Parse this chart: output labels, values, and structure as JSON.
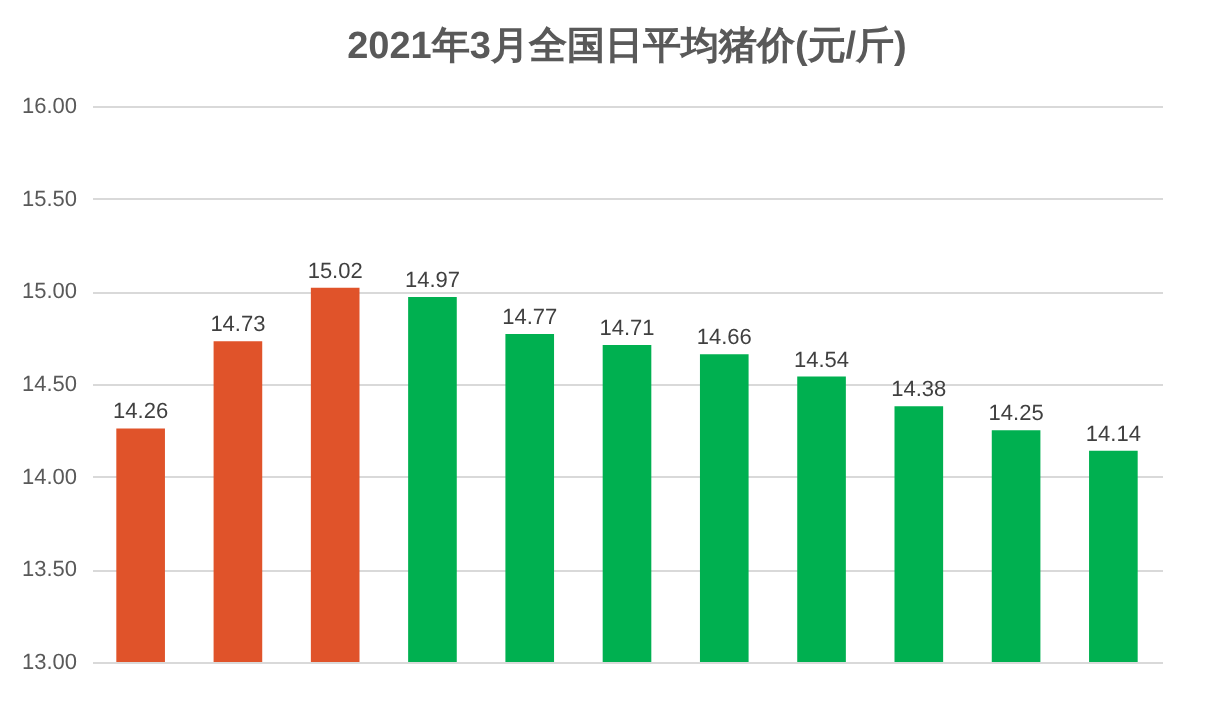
{
  "chart_data": {
    "type": "bar",
    "title": "2021年3月全国日平均猪价(元/斤)",
    "categories": [
      null,
      null,
      null,
      null,
      null,
      null,
      null,
      null,
      null,
      null,
      null
    ],
    "values": [
      14.26,
      14.73,
      15.02,
      14.97,
      14.77,
      14.71,
      14.66,
      14.54,
      14.38,
      14.25,
      14.14
    ],
    "colors": [
      "#e0532a",
      "#e0532a",
      "#e0532a",
      "#00b050",
      "#00b050",
      "#00b050",
      "#00b050",
      "#00b050",
      "#00b050",
      "#00b050",
      "#00b050"
    ],
    "ylim": [
      13,
      16
    ],
    "yticks": [
      {
        "value": 13,
        "label": "13.00"
      },
      {
        "value": 13.5,
        "label": "13.50"
      },
      {
        "value": 14,
        "label": "14.00"
      },
      {
        "value": 14.5,
        "label": "14.50"
      },
      {
        "value": 15,
        "label": "15.00"
      },
      {
        "value": 15.5,
        "label": "15.50"
      },
      {
        "value": 16,
        "label": "16.00"
      }
    ],
    "grid": "y",
    "data_labels": true,
    "tick_labels": "y"
  }
}
